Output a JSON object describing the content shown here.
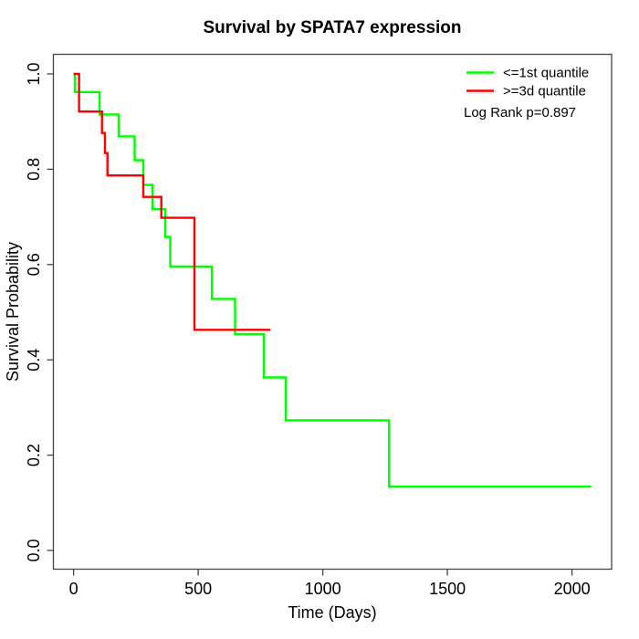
{
  "chart_data": {
    "type": "line",
    "subtype": "kaplan_meier_step",
    "title": "Survival by SPATA7 expression",
    "xlabel": "Time (Days)",
    "ylabel": "Survival Probability",
    "annotation": "Log Rank p=0.897",
    "grid": false,
    "legend_position": "top-right",
    "xlim": [
      -81,
      2159
    ],
    "ylim": [
      -0.0393,
      1.0412
    ],
    "xticks": {
      "values": [
        0,
        500,
        1000,
        1500,
        2000
      ],
      "labels": [
        "0",
        "500",
        "1000",
        "1500",
        "2000"
      ]
    },
    "yticks": {
      "values": [
        0,
        0.2,
        0.4,
        0.6,
        0.8,
        1.0
      ],
      "labels": [
        "0.0",
        "0.2",
        "0.4",
        "0.6",
        "0.8",
        "1.0"
      ]
    },
    "legend": [
      {
        "label": "<=1st quantile",
        "color": "#00FF00"
      },
      {
        "label": ">=3d quantile",
        "color": "#FF0000"
      }
    ],
    "series": [
      {
        "name": "<=1st quantile",
        "color": "#00FF00",
        "end_time": 2077,
        "steps": [
          [
            0,
            1.0
          ],
          [
            5,
            0.962
          ],
          [
            104,
            0.915
          ],
          [
            181,
            0.869
          ],
          [
            245,
            0.819
          ],
          [
            280,
            0.767
          ],
          [
            317,
            0.716
          ],
          [
            368,
            0.658
          ],
          [
            388,
            0.596
          ],
          [
            555,
            0.528
          ],
          [
            648,
            0.454
          ],
          [
            764,
            0.363
          ],
          [
            852,
            0.273
          ],
          [
            1266,
            0.134
          ]
        ]
      },
      {
        "name": ">=3d quantile",
        "color": "#FF0000",
        "end_time": 790,
        "steps": [
          [
            0,
            1.0
          ],
          [
            22,
            0.921
          ],
          [
            114,
            0.876
          ],
          [
            126,
            0.834
          ],
          [
            136,
            0.787
          ],
          [
            280,
            0.742
          ],
          [
            352,
            0.698
          ],
          [
            485,
            0.463
          ]
        ]
      }
    ]
  }
}
